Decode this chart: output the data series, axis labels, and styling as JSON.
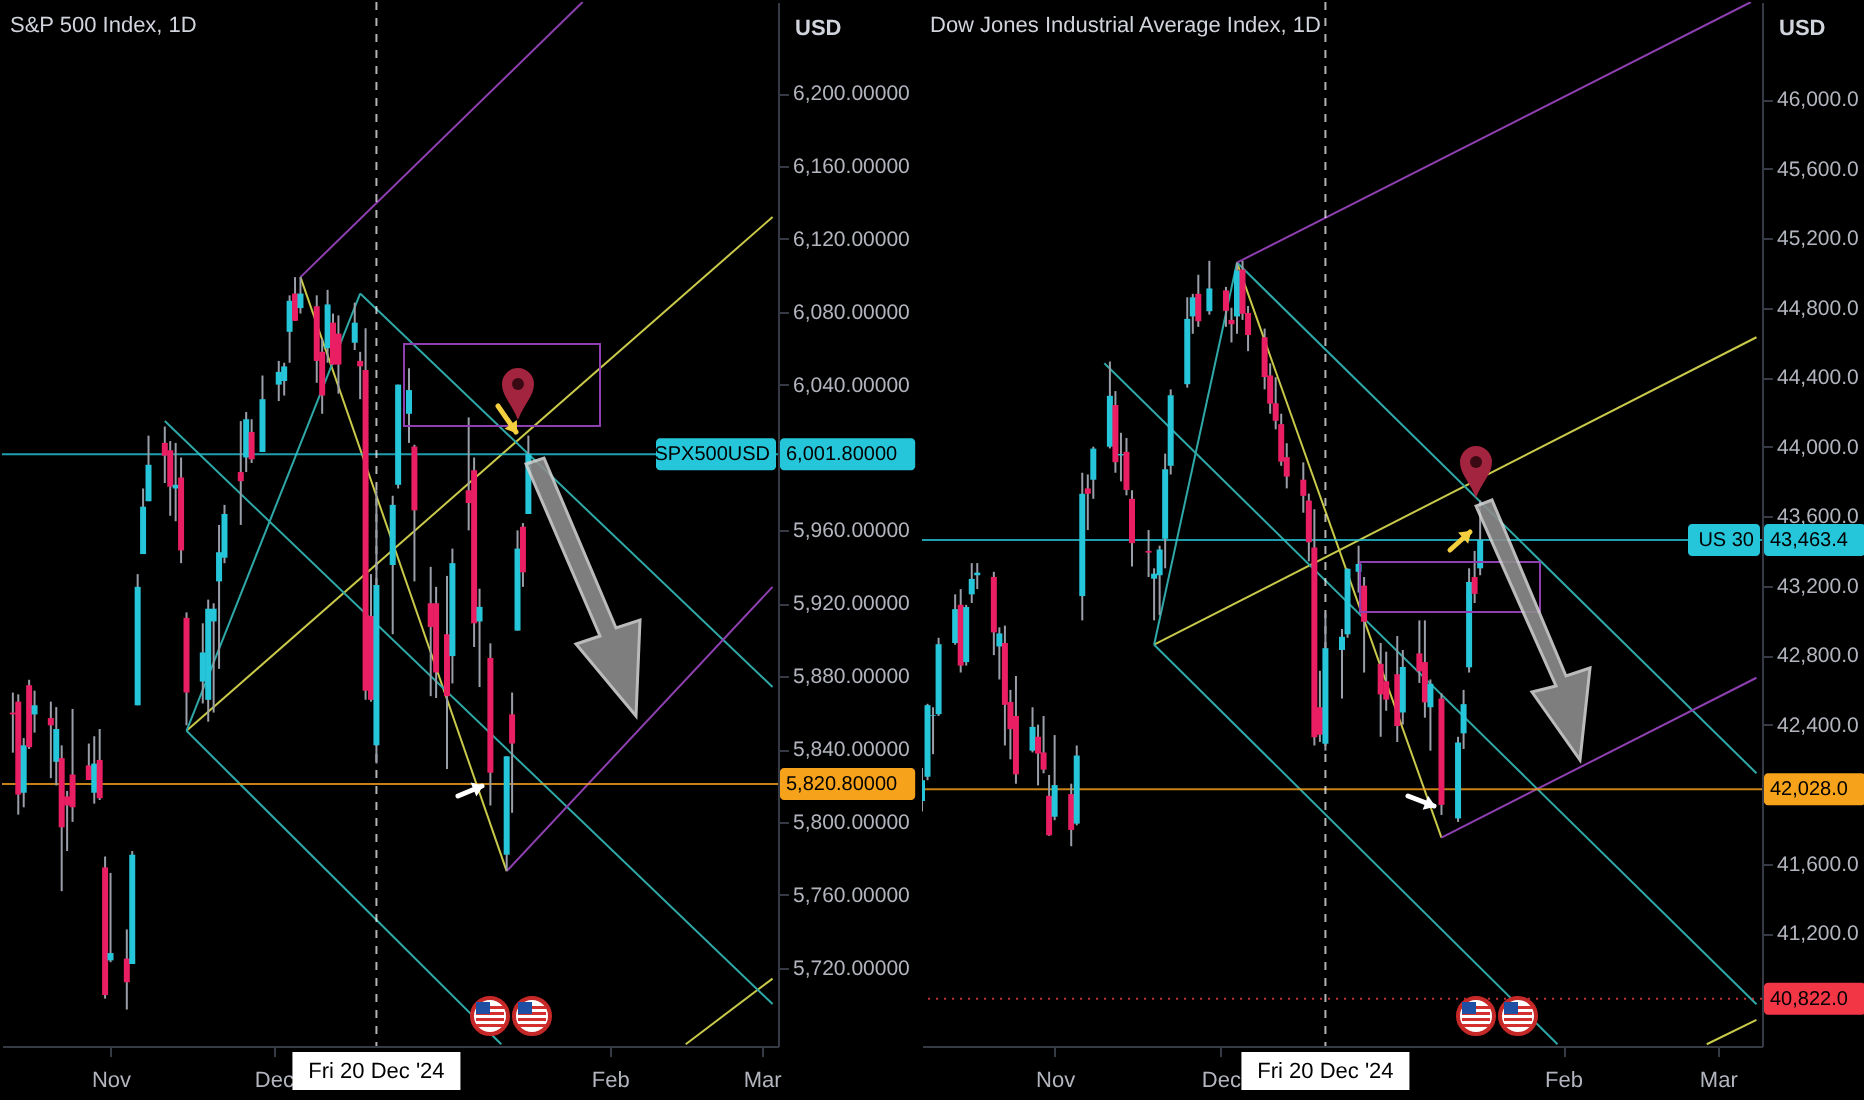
{
  "chart_data": [
    {
      "type": "candlestick",
      "title": "S&P 500 Index, 1D",
      "ylabel": "USD",
      "x": [
        "2024-10-14",
        "2024-10-15",
        "2024-10-16",
        "2024-10-17",
        "2024-10-18",
        "2024-10-21",
        "2024-10-22",
        "2024-10-23",
        "2024-10-24",
        "2024-10-25",
        "2024-10-28",
        "2024-10-29",
        "2024-10-30",
        "2024-10-31",
        "2024-11-01",
        "2024-11-04",
        "2024-11-05",
        "2024-11-06",
        "2024-11-07",
        "2024-11-08",
        "2024-11-11",
        "2024-11-12",
        "2024-11-13",
        "2024-11-14",
        "2024-11-15",
        "2024-11-18",
        "2024-11-19",
        "2024-11-20",
        "2024-11-21",
        "2024-11-22",
        "2024-11-25",
        "2024-11-26",
        "2024-11-27",
        "2024-11-29",
        "2024-12-02",
        "2024-12-03",
        "2024-12-04",
        "2024-12-05",
        "2024-12-06",
        "2024-12-09",
        "2024-12-10",
        "2024-12-11",
        "2024-12-12",
        "2024-12-13",
        "2024-12-16",
        "2024-12-17",
        "2024-12-18",
        "2024-12-19",
        "2024-12-20",
        "2024-12-23",
        "2024-12-24",
        "2024-12-26",
        "2024-12-27",
        "2024-12-30",
        "2024-12-31",
        "2025-01-02",
        "2025-01-03",
        "2025-01-06",
        "2025-01-07",
        "2025-01-08",
        "2025-01-10",
        "2025-01-13",
        "2025-01-14",
        "2025-01-15",
        "2025-01-16",
        "2025-01-17"
      ],
      "ohlc": [
        [
          5860,
          5871,
          5838,
          5859
        ],
        [
          5866,
          5870,
          5804,
          5815
        ],
        [
          5816,
          5846,
          5808,
          5842
        ],
        [
          5875,
          5878,
          5840,
          5841
        ],
        [
          5859,
          5872,
          5849,
          5864
        ],
        [
          5857,
          5866,
          5824,
          5853
        ],
        [
          5833,
          5863,
          5820,
          5851
        ],
        [
          5835,
          5842,
          5762,
          5797
        ],
        [
          5814,
          5817,
          5784,
          5809
        ],
        [
          5826,
          5862,
          5800,
          5808
        ],
        [
          5831,
          5843,
          5823,
          5823
        ],
        [
          5816,
          5847,
          5810,
          5832
        ],
        [
          5834,
          5851,
          5812,
          5813
        ],
        [
          5775,
          5781,
          5703,
          5705
        ],
        [
          5724,
          5772,
          5723,
          5728
        ],
        [
          5725,
          5741,
          5697,
          5712
        ],
        [
          5722,
          5784,
          5722,
          5782
        ],
        [
          5864,
          5936,
          5864,
          5929
        ],
        [
          5947,
          5983,
          5947,
          5973
        ],
        [
          5976,
          6012,
          5976,
          5996
        ],
        [
          6008,
          6017,
          5986,
          6001
        ],
        [
          6004,
          6009,
          5968,
          5984
        ],
        [
          5983,
          6008,
          5965,
          5985
        ],
        [
          5989,
          6000,
          5942,
          5949
        ],
        [
          5912,
          5915,
          5853,
          5871
        ],
        [
          5877,
          5909,
          5865,
          5893
        ],
        [
          5867,
          5922,
          5855,
          5917
        ],
        [
          5910,
          5920,
          5860,
          5917
        ],
        [
          5932,
          5963,
          5884,
          5948
        ],
        [
          5945,
          5974,
          5942,
          5969
        ],
        [
          5992,
          6020,
          5963,
          5987
        ],
        [
          6000,
          6025,
          5992,
          6021
        ],
        [
          6014,
          6021,
          5997,
          5999
        ],
        [
          6003,
          6045,
          6003,
          6032
        ],
        [
          6040,
          6053,
          6031,
          6047
        ],
        [
          6042,
          6052,
          6034,
          6050
        ],
        [
          6069,
          6089,
          6052,
          6086
        ],
        [
          6090,
          6099,
          6075,
          6075
        ],
        [
          6082,
          6099,
          6079,
          6090
        ],
        [
          6083,
          6089,
          6041,
          6053
        ],
        [
          6058,
          6065,
          6024,
          6034
        ],
        [
          6060,
          6092,
          6052,
          6084
        ],
        [
          6074,
          6079,
          6051,
          6051
        ],
        [
          6068,
          6078,
          6035,
          6051
        ],
        [
          6063,
          6085,
          6059,
          6074
        ],
        [
          6053,
          6058,
          6032,
          6050
        ],
        [
          6048,
          6071,
          5867,
          5872
        ],
        [
          5913,
          5936,
          5866,
          5867
        ],
        [
          5842,
          5982,
          5832,
          5930
        ],
        [
          5941,
          5979,
          5903,
          5974
        ],
        [
          5985,
          6040,
          5983,
          6040
        ],
        [
          6024,
          6049,
          6008,
          6037
        ],
        [
          6006,
          6007,
          5932,
          5971
        ],
        [
          5920,
          5940,
          5869,
          5907
        ],
        [
          5920,
          5929,
          5868,
          5882
        ],
        [
          5903,
          5935,
          5829,
          5869
        ],
        [
          5891,
          5950,
          5876,
          5942
        ],
        [
          5982,
          6022,
          5960,
          5975
        ],
        [
          5993,
          6000,
          5896,
          5909
        ],
        [
          5910,
          5928,
          5874,
          5918
        ],
        [
          5890,
          5898,
          5809,
          5827
        ],
        [
          5782,
          5836,
          5773,
          5836
        ],
        [
          5859,
          5871,
          5805,
          5843
        ],
        [
          5905,
          5960,
          5905,
          5950
        ],
        [
          5962,
          5964,
          5929,
          5937
        ],
        [
          5969,
          6012,
          5969,
          6002
        ]
      ],
      "colors": [
        "#e91e63",
        "#e91e63",
        "#26c6da",
        "#e91e63",
        "#26c6da",
        "#e91e63",
        "#26c6da",
        "#e91e63",
        "#e91e63",
        "#e91e63",
        "#e91e63",
        "#26c6da",
        "#e91e63",
        "#e91e63",
        "#26c6da",
        "#e91e63",
        "#26c6da",
        "#26c6da",
        "#26c6da",
        "#26c6da",
        "#e91e63",
        "#e91e63",
        "#26c6da",
        "#e91e63",
        "#e91e63",
        "#26c6da",
        "#26c6da",
        "#26c6da",
        "#26c6da",
        "#26c6da",
        "#e91e63",
        "#26c6da",
        "#e91e63",
        "#26c6da",
        "#26c6da",
        "#26c6da",
        "#26c6da",
        "#e91e63",
        "#26c6da",
        "#e91e63",
        "#e91e63",
        "#26c6da",
        "#e91e63",
        "#e91e63",
        "#26c6da",
        "#e91e63",
        "#e91e63",
        "#e91e63",
        "#26c6da",
        "#26c6da",
        "#26c6da",
        "#26c6da",
        "#e91e63",
        "#e91e63",
        "#e91e63",
        "#e91e63",
        "#26c6da",
        "#e91e63",
        "#e91e63",
        "#26c6da",
        "#e91e63",
        "#26c6da",
        "#e91e63",
        "#26c6da",
        "#e91e63",
        "#26c6da"
      ],
      "series": [
        {
          "type": "line",
          "color": "#c9c94a",
          "x": [
            "2024-11-15",
            "2025-03-03"
          ],
          "values": [
            5850,
            6132
          ]
        },
        {
          "type": "line",
          "color": "#c9c94a",
          "x": [
            "2024-12-06",
            "2025-01-13"
          ],
          "values": [
            6099,
            5773
          ]
        },
        {
          "type": "line",
          "color": "#c9c94a",
          "x": [
            "2025-02-15",
            "2025-03-03"
          ],
          "values": [
            5678,
            5714
          ]
        },
        {
          "type": "line",
          "color": "#2fa8a8",
          "x": [
            "2024-11-15",
            "2024-12-17"
          ],
          "values": [
            5850,
            6090
          ]
        },
        {
          "type": "line",
          "color": "#2fa8a8",
          "x": [
            "2024-12-17",
            "2025-03-03"
          ],
          "values": [
            6090,
            5874
          ]
        },
        {
          "type": "line",
          "color": "#2fa8a8",
          "x": [
            "2024-11-11",
            "2025-03-03"
          ],
          "values": [
            6020,
            5700
          ]
        },
        {
          "type": "line",
          "color": "#2fa8a8",
          "x": [
            "2024-11-15",
            "2025-01-12"
          ],
          "values": [
            5850,
            5678
          ]
        },
        {
          "type": "line",
          "color": "#8e3fb0",
          "x": [
            "2024-12-06",
            "2025-01-27"
          ],
          "values": [
            6099,
            6250
          ]
        },
        {
          "type": "line",
          "color": "#8e3fb0",
          "x": [
            "2025-01-13",
            "2025-03-03"
          ],
          "values": [
            5773,
            5929
          ]
        }
      ],
      "annotations": [
        {
          "text": "SPX500USD",
          "y": 6001.8
        }
      ],
      "ref_lines": [
        {
          "axis": "y",
          "value": 6001.8,
          "label": "6,001.80000",
          "color": "#26c6da"
        },
        {
          "axis": "y",
          "value": 5820.8,
          "label": "5,820.80000",
          "color": "#f7a21b"
        },
        {
          "axis": "x",
          "value": "2024-12-20",
          "label": "Fri 20 Dec '24",
          "color": "#ffffff",
          "line_style": "dashed"
        }
      ],
      "xlim": [
        "2024-10-12",
        "2025-03-04"
      ],
      "xticks": [
        {
          "value": "2024-11-01",
          "label": "Nov"
        },
        {
          "value": "2024-12-01",
          "label": "Dec"
        },
        {
          "value": "2025-02-01",
          "label": "Feb"
        },
        {
          "value": "2025-03-01",
          "label": "Mar"
        }
      ],
      "ylim": [
        5677,
        6250
      ],
      "yticks": [
        {
          "value": 6200,
          "label": "6,200.00000"
        },
        {
          "value": 6160,
          "label": "6,160.00000"
        },
        {
          "value": 6120,
          "label": "6,120.00000"
        },
        {
          "value": 6080,
          "label": "6,080.00000"
        },
        {
          "value": 6040,
          "label": "6,040.00000"
        },
        {
          "value": 5960,
          "label": "5,960.00000"
        },
        {
          "value": 5920,
          "label": "5,920.00000"
        },
        {
          "value": 5880,
          "label": "5,880.00000"
        },
        {
          "value": 5840,
          "label": "5,840.00000"
        },
        {
          "value": 5800,
          "label": "5,800.00000"
        },
        {
          "value": 5760,
          "label": "5,760.00000"
        },
        {
          "value": 5720,
          "label": "5,720.00000"
        }
      ]
    },
    {
      "type": "candlestick",
      "title": "Dow Jones Industrial Average Index, 1D",
      "ylabel": "USD",
      "x": [
        "2024-10-08",
        "2024-10-09",
        "2024-10-10",
        "2024-10-11",
        "2024-10-14",
        "2024-10-15",
        "2024-10-16",
        "2024-10-17",
        "2024-10-18",
        "2024-10-21",
        "2024-10-22",
        "2024-10-23",
        "2024-10-24",
        "2024-10-25",
        "2024-10-28",
        "2024-10-29",
        "2024-10-30",
        "2024-10-31",
        "2024-11-01",
        "2024-11-04",
        "2024-11-05",
        "2024-11-06",
        "2024-11-07",
        "2024-11-08",
        "2024-11-11",
        "2024-11-12",
        "2024-11-13",
        "2024-11-14",
        "2024-11-15",
        "2024-11-18",
        "2024-11-19",
        "2024-11-20",
        "2024-11-21",
        "2024-11-22",
        "2024-11-25",
        "2024-11-26",
        "2024-11-27",
        "2024-11-29",
        "2024-12-02",
        "2024-12-03",
        "2024-12-04",
        "2024-12-05",
        "2024-12-06",
        "2024-12-09",
        "2024-12-10",
        "2024-12-11",
        "2024-12-12",
        "2024-12-13",
        "2024-12-16",
        "2024-12-17",
        "2024-12-18",
        "2024-12-19",
        "2024-12-20",
        "2024-12-23",
        "2024-12-24",
        "2024-12-26",
        "2024-12-27",
        "2024-12-30",
        "2024-12-31",
        "2025-01-02",
        "2025-01-03",
        "2025-01-06",
        "2025-01-07",
        "2025-01-08",
        "2025-01-10",
        "2025-01-13",
        "2025-01-14",
        "2025-01-15",
        "2025-01-16",
        "2025-01-17"
      ],
      "ohlc": [
        [
          41960,
          42150,
          41900,
          42080
        ],
        [
          42100,
          42520,
          42080,
          42512
        ],
        [
          42450,
          42500,
          42230,
          42454
        ],
        [
          42460,
          42900,
          42450,
          42863
        ],
        [
          42870,
          43150,
          42860,
          43065
        ],
        [
          43090,
          43180,
          42700,
          42740
        ],
        [
          42760,
          43090,
          42740,
          43077
        ],
        [
          43150,
          43330,
          43100,
          43239
        ],
        [
          43260,
          43330,
          43180,
          43275
        ],
        [
          43250,
          43280,
          42800,
          42931
        ],
        [
          42850,
          42960,
          42660,
          42925
        ],
        [
          42870,
          42970,
          42280,
          42514
        ],
        [
          42530,
          42600,
          42200,
          42374
        ],
        [
          42450,
          42680,
          42060,
          42114
        ],
        [
          42250,
          42500,
          42240,
          42387
        ],
        [
          42330,
          42400,
          42050,
          42233
        ],
        [
          42240,
          42450,
          42120,
          42141
        ],
        [
          41990,
          42110,
          41760,
          41763
        ],
        [
          41870,
          42340,
          41850,
          42052
        ],
        [
          42000,
          42060,
          41700,
          41794
        ],
        [
          41830,
          42280,
          41820,
          42222
        ],
        [
          43140,
          43850,
          43000,
          43729
        ],
        [
          43760,
          43840,
          43520,
          43729
        ],
        [
          43810,
          44000,
          43700,
          43989
        ],
        [
          44000,
          44490,
          43990,
          44293
        ],
        [
          44240,
          44320,
          43850,
          43911
        ],
        [
          43950,
          44080,
          43800,
          43958
        ],
        [
          43970,
          44050,
          43720,
          43751
        ],
        [
          43700,
          43750,
          43310,
          43445
        ],
        [
          43400,
          43520,
          43250,
          43390
        ],
        [
          43240,
          43300,
          43000,
          43269
        ],
        [
          43260,
          43430,
          43030,
          43408
        ],
        [
          43470,
          43960,
          43300,
          43870
        ],
        [
          43890,
          44330,
          43840,
          44296
        ],
        [
          44360,
          44860,
          44340,
          44736
        ],
        [
          44750,
          44880,
          44650,
          44860
        ],
        [
          44880,
          44990,
          44690,
          44722
        ],
        [
          44780,
          45070,
          44760,
          44911
        ],
        [
          44900,
          44920,
          44690,
          44782
        ],
        [
          44730,
          44800,
          44600,
          44705
        ],
        [
          44750,
          45060,
          44650,
          45014
        ],
        [
          45020,
          45070,
          44730,
          44765
        ],
        [
          44770,
          44810,
          44550,
          44643
        ],
        [
          44630,
          44680,
          44330,
          44401
        ],
        [
          44410,
          44480,
          44190,
          44248
        ],
        [
          44250,
          44400,
          44100,
          44149
        ],
        [
          44130,
          44190,
          43890,
          43914
        ],
        [
          43940,
          44020,
          43760,
          43828
        ],
        [
          43810,
          43910,
          43620,
          43717
        ],
        [
          43690,
          43730,
          43340,
          43450
        ],
        [
          43420,
          43640,
          42280,
          42327
        ],
        [
          42500,
          42710,
          42300,
          42342
        ],
        [
          42290,
          43040,
          42250,
          42840
        ],
        [
          42830,
          42950,
          42550,
          42906
        ],
        [
          42920,
          43300,
          42900,
          43297
        ],
        [
          43280,
          43430,
          43160,
          43325
        ],
        [
          43200,
          43250,
          42700,
          42992
        ],
        [
          42750,
          42870,
          42330,
          42574
        ],
        [
          42650,
          42820,
          42480,
          42544
        ],
        [
          42690,
          42910,
          42300,
          42392
        ],
        [
          42470,
          42830,
          42400,
          42732
        ],
        [
          42810,
          43000,
          42640,
          42707
        ],
        [
          42760,
          43000,
          42440,
          42528
        ],
        [
          42500,
          42660,
          42250,
          42635
        ],
        [
          42550,
          42580,
          41880,
          41938
        ],
        [
          41860,
          42330,
          41840,
          42297
        ],
        [
          42350,
          42600,
          42260,
          42518
        ],
        [
          42730,
          43300,
          42700,
          43221
        ],
        [
          43250,
          43400,
          43100,
          43153
        ],
        [
          43300,
          43690,
          43260,
          43463.4
        ]
      ],
      "colors": [
        "#26c6da",
        "#26c6da",
        "#26c6da",
        "#26c6da",
        "#26c6da",
        "#e91e63",
        "#26c6da",
        "#26c6da",
        "#26c6da",
        "#e91e63",
        "#26c6da",
        "#e91e63",
        "#e91e63",
        "#e91e63",
        "#26c6da",
        "#e91e63",
        "#e91e63",
        "#e91e63",
        "#26c6da",
        "#e91e63",
        "#26c6da",
        "#26c6da",
        "#e91e63",
        "#26c6da",
        "#26c6da",
        "#e91e63",
        "#26c6da",
        "#e91e63",
        "#e91e63",
        "#e91e63",
        "#26c6da",
        "#26c6da",
        "#26c6da",
        "#26c6da",
        "#26c6da",
        "#26c6da",
        "#e91e63",
        "#26c6da",
        "#e91e63",
        "#e91e63",
        "#26c6da",
        "#e91e63",
        "#e91e63",
        "#e91e63",
        "#e91e63",
        "#e91e63",
        "#e91e63",
        "#e91e63",
        "#e91e63",
        "#e91e63",
        "#e91e63",
        "#e91e63",
        "#26c6da",
        "#26c6da",
        "#26c6da",
        "#26c6da",
        "#e91e63",
        "#e91e63",
        "#e91e63",
        "#e91e63",
        "#26c6da",
        "#e91e63",
        "#e91e63",
        "#26c6da",
        "#e91e63",
        "#26c6da",
        "#26c6da",
        "#26c6da",
        "#e91e63",
        "#26c6da"
      ],
      "series": [
        {
          "type": "line",
          "color": "#c9c94a",
          "x": [
            "2024-11-19",
            "2025-03-08"
          ],
          "values": [
            42860,
            44630
          ]
        },
        {
          "type": "line",
          "color": "#c9c94a",
          "x": [
            "2024-12-04",
            "2025-01-10"
          ],
          "values": [
            45060,
            41750
          ]
        },
        {
          "type": "line",
          "color": "#c9c94a",
          "x": [
            "2025-02-27",
            "2025-03-08"
          ],
          "values": [
            40560,
            40700
          ]
        },
        {
          "type": "line",
          "color": "#2fa8a8",
          "x": [
            "2024-11-19",
            "2024-12-04"
          ],
          "values": [
            42860,
            45060
          ]
        },
        {
          "type": "line",
          "color": "#2fa8a8",
          "x": [
            "2024-12-04",
            "2025-03-08"
          ],
          "values": [
            45060,
            42120
          ]
        },
        {
          "type": "line",
          "color": "#2fa8a8",
          "x": [
            "2024-11-10",
            "2025-03-08"
          ],
          "values": [
            44480,
            40790
          ]
        },
        {
          "type": "line",
          "color": "#2fa8a8",
          "x": [
            "2024-11-19",
            "2025-01-31"
          ],
          "values": [
            42860,
            40560
          ]
        },
        {
          "type": "line",
          "color": "#8e3fb0",
          "x": [
            "2024-12-04",
            "2025-03-07"
          ],
          "values": [
            45060,
            46560
          ]
        },
        {
          "type": "line",
          "color": "#8e3fb0",
          "x": [
            "2025-01-10",
            "2025-03-08"
          ],
          "values": [
            41750,
            42670
          ]
        }
      ],
      "annotations": [
        {
          "text": "US 30",
          "y": 43463.4
        }
      ],
      "ref_lines": [
        {
          "axis": "y",
          "value": 43463.4,
          "label": "43,463.4",
          "color": "#26c6da"
        },
        {
          "axis": "y",
          "value": 42028.0,
          "label": "42,028.0",
          "color": "#f7a21b"
        },
        {
          "axis": "y",
          "value": 40822.0,
          "label": "40,822.0",
          "color": "#f23645",
          "line_style": "dotted"
        },
        {
          "axis": "x",
          "value": "2024-12-20",
          "label": "Fri 20 Dec '24",
          "color": "#ffffff",
          "line_style": "dashed"
        }
      ],
      "xlim": [
        "2024-10-08",
        "2025-03-09"
      ],
      "xticks": [
        {
          "value": "2024-11-01",
          "label": "Nov"
        },
        {
          "value": "2024-12-01",
          "label": "Dec"
        },
        {
          "value": "2025-02-01",
          "label": "Feb"
        },
        {
          "value": "2025-03-01",
          "label": "Mar"
        }
      ],
      "ylim": [
        40550,
        46560
      ],
      "yticks": [
        {
          "value": 46000,
          "label": "46,000.0"
        },
        {
          "value": 45600,
          "label": "45,600.0"
        },
        {
          "value": 45200,
          "label": "45,200.0"
        },
        {
          "value": 44800,
          "label": "44,800.0"
        },
        {
          "value": 44400,
          "label": "44,400.0"
        },
        {
          "value": 44000,
          "label": "44,000.0"
        },
        {
          "value": 43600,
          "label": "43,600.0"
        },
        {
          "value": 43200,
          "label": "43,200.0"
        },
        {
          "value": 42800,
          "label": "42,800.0"
        },
        {
          "value": 42400,
          "label": "42,400.0"
        },
        {
          "value": 41600,
          "label": "41,600.0"
        },
        {
          "value": 41200,
          "label": "41,200.0"
        }
      ]
    }
  ]
}
